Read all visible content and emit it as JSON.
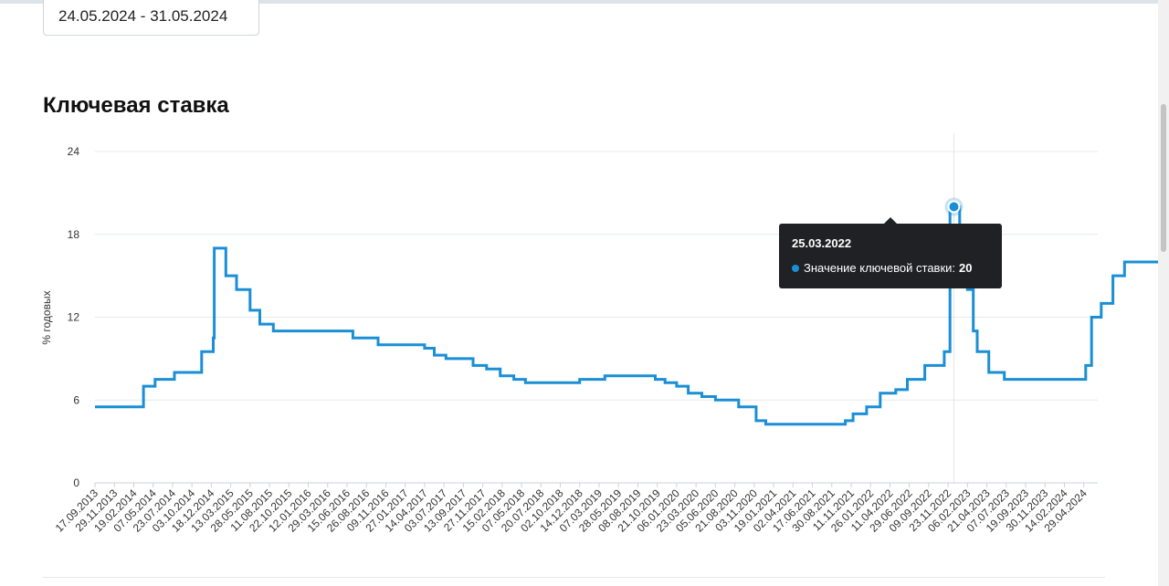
{
  "filter": {
    "date_range": "24.05.2024 - 31.05.2024"
  },
  "chart_data": {
    "type": "line",
    "title": "Ключевая ставка",
    "ylabel": "% годовых",
    "xlabel": "",
    "ylim": [
      0,
      24
    ],
    "yticks": [
      "0",
      "6",
      "12",
      "18",
      "24"
    ],
    "grid": true,
    "step": true,
    "color": "#1a8fd6",
    "x_tick_labels": [
      "17.09.2013",
      "29.11.2013",
      "19.02.2014",
      "07.05.2014",
      "23.07.2014",
      "03.10.2014",
      "18.12.2014",
      "13.03.2015",
      "28.05.2015",
      "11.08.2015",
      "22.10.2015",
      "12.01.2016",
      "29.03.2016",
      "15.06.2016",
      "26.08.2016",
      "09.11.2016",
      "27.01.2017",
      "14.04.2017",
      "03.07.2017",
      "13.09.2017",
      "27.11.2017",
      "15.02.2018",
      "07.05.2018",
      "20.07.2018",
      "02.10.2018",
      "14.12.2018",
      "07.03.2019",
      "28.05.2019",
      "08.08.2019",
      "21.10.2019",
      "06.01.2020",
      "23.03.2020",
      "05.06.2020",
      "21.08.2020",
      "03.11.2020",
      "19.01.2021",
      "02.04.2021",
      "17.06.2021",
      "30.08.2021",
      "11.11.2021",
      "26.01.2022",
      "11.04.2022",
      "29.06.2022",
      "09.09.2022",
      "23.11.2022",
      "06.02.2023",
      "21.04.2023",
      "07.07.2023",
      "19.09.2023",
      "30.11.2023",
      "14.02.2024",
      "29.04.2024"
    ],
    "series": [
      {
        "values": [
          [
            0,
            5.5
          ],
          [
            2.5,
            5.5
          ],
          [
            2.5,
            7
          ],
          [
            3.1,
            7
          ],
          [
            3.1,
            7.5
          ],
          [
            4.1,
            7.5
          ],
          [
            4.1,
            8
          ],
          [
            5.5,
            8
          ],
          [
            5.5,
            9.5
          ],
          [
            6.1,
            9.5
          ],
          [
            6.1,
            10.5
          ],
          [
            6.15,
            10.5
          ],
          [
            6.15,
            17
          ],
          [
            6.75,
            17
          ],
          [
            6.75,
            15
          ],
          [
            7.3,
            15
          ],
          [
            7.3,
            14
          ],
          [
            8,
            14
          ],
          [
            8,
            12.5
          ],
          [
            8.5,
            12.5
          ],
          [
            8.5,
            11.5
          ],
          [
            9.2,
            11.5
          ],
          [
            9.2,
            11
          ],
          [
            13.3,
            11
          ],
          [
            13.3,
            10.5
          ],
          [
            14.6,
            10.5
          ],
          [
            14.6,
            10
          ],
          [
            17,
            10
          ],
          [
            17,
            9.75
          ],
          [
            17.5,
            9.75
          ],
          [
            17.5,
            9.25
          ],
          [
            18.1,
            9.25
          ],
          [
            18.1,
            9
          ],
          [
            19.5,
            9
          ],
          [
            19.5,
            8.5
          ],
          [
            20.2,
            8.5
          ],
          [
            20.2,
            8.25
          ],
          [
            20.9,
            8.25
          ],
          [
            20.9,
            7.75
          ],
          [
            21.6,
            7.75
          ],
          [
            21.6,
            7.5
          ],
          [
            22.2,
            7.5
          ],
          [
            22.2,
            7.25
          ],
          [
            25,
            7.25
          ],
          [
            25,
            7.5
          ],
          [
            26.3,
            7.5
          ],
          [
            26.3,
            7.75
          ],
          [
            28.9,
            7.75
          ],
          [
            28.9,
            7.5
          ],
          [
            29.4,
            7.5
          ],
          [
            29.4,
            7.25
          ],
          [
            30,
            7.25
          ],
          [
            30,
            7
          ],
          [
            30.6,
            7
          ],
          [
            30.6,
            6.5
          ],
          [
            31.3,
            6.5
          ],
          [
            31.3,
            6.25
          ],
          [
            32,
            6.25
          ],
          [
            32,
            6
          ],
          [
            33.2,
            6
          ],
          [
            33.2,
            5.5
          ],
          [
            34.1,
            5.5
          ],
          [
            34.1,
            4.5
          ],
          [
            34.6,
            4.5
          ],
          [
            34.6,
            4.25
          ],
          [
            38.7,
            4.25
          ],
          [
            38.7,
            4.5
          ],
          [
            39.1,
            4.5
          ],
          [
            39.1,
            5
          ],
          [
            39.8,
            5
          ],
          [
            39.8,
            5.5
          ],
          [
            40.5,
            5.5
          ],
          [
            40.5,
            6.5
          ],
          [
            41.3,
            6.5
          ],
          [
            41.3,
            6.75
          ],
          [
            41.9,
            6.75
          ],
          [
            41.9,
            7.5
          ],
          [
            42.8,
            7.5
          ],
          [
            42.8,
            8.5
          ],
          [
            43.8,
            8.5
          ],
          [
            43.8,
            9.5
          ],
          [
            44.1,
            9.5
          ],
          [
            44.1,
            20
          ],
          [
            44.6,
            20
          ],
          [
            44.6,
            17
          ],
          [
            45,
            17
          ],
          [
            45,
            14
          ],
          [
            45.3,
            14
          ],
          [
            45.3,
            11
          ],
          [
            45.5,
            11
          ],
          [
            45.5,
            9.5
          ],
          [
            46.1,
            9.5
          ],
          [
            46.1,
            8
          ],
          [
            46.9,
            8
          ],
          [
            46.9,
            7.5
          ],
          [
            51.1,
            7.5
          ],
          [
            51.1,
            8.5
          ],
          [
            51.4,
            8.5
          ],
          [
            51.4,
            12
          ],
          [
            51.9,
            12
          ],
          [
            51.9,
            13
          ],
          [
            52.5,
            13
          ],
          [
            52.5,
            15
          ],
          [
            53.1,
            15
          ],
          [
            53.1,
            16
          ],
          [
            56,
            16
          ]
        ]
      }
    ],
    "tooltip": {
      "date": "25.03.2022",
      "label": "Значение ключевой ставки:",
      "value": "20",
      "x_index": 44.3,
      "y": 20
    }
  }
}
